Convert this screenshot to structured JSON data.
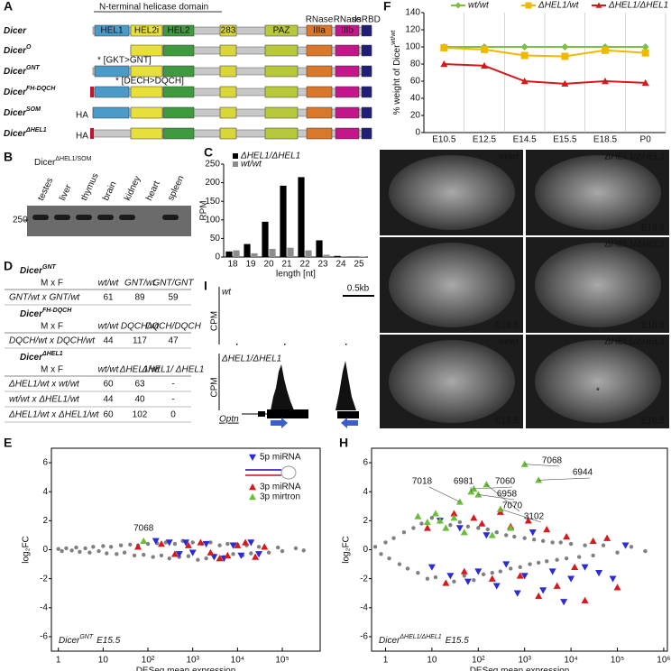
{
  "panel_a": {
    "label": "A",
    "helicase_label": "N-terminal helicase domain",
    "domains": [
      {
        "name": "HEL1",
        "color": "#4b9bc8"
      },
      {
        "name": "HEL2i",
        "color": "#e8e03a"
      },
      {
        "name": "HEL2",
        "color": "#3f9a3f"
      },
      {
        "name": "283",
        "color": "#d9d63a"
      },
      {
        "name": "PAZ",
        "color": "#b7c93b"
      },
      {
        "name": "IIIa",
        "color": "#d9782a"
      },
      {
        "name": "IIIb",
        "color": "#c2168a"
      },
      {
        "name": "dsRBD",
        "color": "#1f1f7a"
      }
    ],
    "headers": [
      "RNase",
      "RNase"
    ],
    "rows": [
      {
        "name": "Dicer"
      },
      {
        "name": "Dicer",
        "sup": "O"
      },
      {
        "name": "Dicer",
        "sup": "GNT",
        "note": "* [GKT>GNT]"
      },
      {
        "name": "Dicer",
        "sup": "FH-DQCH",
        "note": "* [DECH>DQCH]"
      },
      {
        "name": "Dicer",
        "sup": "SOM",
        "tag": "HA"
      },
      {
        "name": "Dicer",
        "sup": "ΔHEL1",
        "tag": "HA"
      }
    ]
  },
  "panel_b": {
    "label": "B",
    "title": "Dicer",
    "title_sup": "ΔHEL1/SOM",
    "lanes": [
      "testes",
      "liver",
      "thymus",
      "brain",
      "kidney",
      "heart",
      "spleen"
    ],
    "marker": "250"
  },
  "panel_d": {
    "label": "D",
    "tables": [
      {
        "title": "Dicer",
        "title_sup": "GNT",
        "header": [
          "M x F",
          "wt/wt",
          "GNT/wt",
          "GNT/GNT"
        ],
        "rows": [
          [
            "GNT/wt x GNT/wt",
            61,
            89,
            59
          ]
        ]
      },
      {
        "title": "Dicer",
        "title_sup": "FH-DQCH",
        "header": [
          "M x F",
          "wt/wt",
          "DQCH/wt",
          "DQCH/DQCH"
        ],
        "rows": [
          [
            "DQCH/wt x DQCH/wt",
            44,
            117,
            47
          ]
        ]
      },
      {
        "title": "Dicer",
        "title_sup": "ΔHEL1",
        "header": [
          "M x F",
          "wt/wt",
          "ΔHEL1/wt",
          "ΔHEL1/ ΔHEL1"
        ],
        "rows": [
          [
            "ΔHEL1/wt x wt/wt",
            60,
            63,
            "-"
          ],
          [
            "wt/wt x ΔHEL1/wt",
            44,
            40,
            "-"
          ],
          [
            "ΔHEL1/wt x ΔHEL1/wt",
            60,
            102,
            0
          ]
        ]
      }
    ]
  },
  "panel_g": {
    "label": "G",
    "asterisk": "*",
    "images": [
      {
        "genotype": "wt/wt"
      },
      {
        "genotype": "ΔHEL1/ΔHEL1",
        "stage": "E18.5"
      },
      {
        "stage": "E18.5"
      },
      {
        "genotype": "ΔHEL1/ΔHEL1",
        "stage": "E18.5"
      },
      {
        "genotype": "wt/wt",
        "stage": "E18.5"
      },
      {
        "genotype": "ΔHEL1/ΔHEL1",
        "stage": "E18.5"
      }
    ]
  },
  "panel_i": {
    "label": "I",
    "tracks": [
      {
        "name": "wt",
        "ylabel": "CPM"
      },
      {
        "name": "ΔHEL1/ΔHEL1",
        "ylabel": "CPM"
      }
    ],
    "scale": "0.5kb",
    "gene": "Optn"
  },
  "chart_data": [
    {
      "type": "bar",
      "panel": "C",
      "categories": [
        "18",
        "19",
        "20",
        "21",
        "22",
        "23",
        "24",
        "25"
      ],
      "series": [
        {
          "name": "ΔHEL1/ΔHEL1",
          "color": "#000000",
          "values": [
            15,
            35,
            95,
            192,
            215,
            45,
            3,
            1
          ]
        },
        {
          "name": "wt/wt",
          "color": "#8c8c8c",
          "values": [
            18,
            10,
            22,
            25,
            18,
            6,
            2,
            1
          ]
        }
      ],
      "xlabel": "length [nt]",
      "ylabel": "RPM",
      "ylim": [
        0,
        250
      ],
      "yticks": [
        0,
        50,
        100,
        150,
        200,
        250
      ],
      "legend": "upper left"
    },
    {
      "type": "line",
      "panel": "F",
      "categories": [
        "E10.5",
        "E12.5",
        "E14.5",
        "E15.5",
        "E18.5",
        "P0"
      ],
      "series": [
        {
          "name": "wt/wt",
          "color": "#7ac143",
          "marker": "diamond",
          "values": [
            100,
            100,
            100,
            100,
            100,
            100
          ]
        },
        {
          "name": "ΔHEL1/wt",
          "color": "#f2b800",
          "marker": "square",
          "values": [
            99,
            97,
            90,
            89,
            96,
            93
          ]
        },
        {
          "name": "ΔHEL1/ΔHEL1",
          "color": "#d7191c",
          "marker": "triangle-up",
          "values": [
            80,
            78,
            60,
            57,
            60,
            58
          ]
        }
      ],
      "ylabel": "% weight of Dicer",
      "ylabel_sup": "wt/wt",
      "ylim": [
        0,
        140
      ],
      "yticks": [
        0,
        20,
        40,
        60,
        80,
        100,
        120,
        140
      ],
      "legend": "top"
    },
    {
      "type": "scatter",
      "panel": "E",
      "xlog": true,
      "xlim": [
        0.7,
        700000
      ],
      "xticks": [
        1,
        10,
        {
          "value": 100,
          "label": "10²"
        },
        {
          "value": 1000,
          "label": "10³"
        },
        {
          "value": 10000,
          "label": "10⁴"
        },
        {
          "value": 100000,
          "label": "10⁵"
        }
      ],
      "ylim": [
        -7,
        7
      ],
      "yticks": [
        6,
        4,
        2,
        0,
        -2,
        -4,
        -6
      ],
      "xlabel": "DESeq mean expression",
      "ylabel": "log₂FC",
      "subtitle": "Dicer",
      "subtitle_sup": "GNT",
      "subtitle_suffix": "E15.5",
      "annotations": [
        "7068"
      ],
      "legend": "upper right",
      "series": [
        {
          "color": "#808080",
          "marker": "circle",
          "x": [
            1,
            1.2,
            1.5,
            2,
            2.5,
            3,
            4,
            5,
            6,
            8,
            10,
            12,
            15,
            20,
            25,
            30,
            40,
            50,
            60,
            80,
            100,
            130,
            160,
            200,
            250,
            300,
            400,
            500,
            600,
            800,
            1000,
            1300,
            1600,
            2000,
            2500,
            3000,
            4000,
            5000,
            6000,
            8000,
            10000,
            13000,
            16000,
            20000,
            30000,
            50000,
            80000,
            100000,
            200000,
            300000
          ],
          "y": [
            0.05,
            -0.1,
            0.1,
            -0.05,
            0.15,
            -0.15,
            0.1,
            -0.2,
            0.2,
            -0.1,
            0.25,
            -0.25,
            0.2,
            -0.3,
            0.3,
            -0.2,
            0.35,
            -0.4,
            0.3,
            -0.35,
            0.4,
            -0.5,
            0.45,
            -0.4,
            0.5,
            -0.6,
            0.4,
            -0.5,
            0.6,
            -0.45,
            0.5,
            -0.7,
            0.4,
            -0.6,
            0.5,
            -0.4,
            0.3,
            -0.5,
            0.4,
            -0.3,
            0.35,
            -0.4,
            0.3,
            -0.25,
            0.2,
            -0.2,
            0.15,
            -0.1,
            0.1,
            -0.05
          ]
        },
        {
          "name": "5p miRNA",
          "color": "#2b2bd9",
          "marker": "triangle-down",
          "x": [
            150,
            300,
            500,
            700,
            1000,
            2000,
            3000,
            5000,
            8000,
            12000,
            20000,
            30000
          ],
          "y": [
            0.6,
            0.5,
            -0.3,
            0.5,
            -0.2,
            0.4,
            -0.5,
            -0.6,
            0.3,
            -0.4,
            0.5,
            -0.3
          ]
        },
        {
          "name": "3p miRNA",
          "color": "#d7191c",
          "marker": "triangle-up",
          "x": [
            60,
            200,
            400,
            800,
            1500,
            2500,
            4000,
            6000,
            10000,
            15000,
            25000,
            40000
          ],
          "y": [
            0.2,
            0.4,
            -0.3,
            0.3,
            0.5,
            -0.2,
            -0.6,
            -0.4,
            0.3,
            0.5,
            -0.5,
            0.2
          ]
        },
        {
          "name": "3p mirtron",
          "color": "#6abf3a",
          "marker": "triangle-up",
          "x": [
            80
          ],
          "y": [
            0.6
          ]
        }
      ]
    },
    {
      "type": "scatter",
      "panel": "H",
      "xlog": true,
      "xlim": [
        0.5,
        1200000
      ],
      "xticks": [
        1,
        10,
        {
          "value": 100,
          "label": "10²"
        },
        {
          "value": 1000,
          "label": "10³"
        },
        {
          "value": 10000,
          "label": "10⁴"
        },
        {
          "value": 100000,
          "label": "10⁵"
        },
        {
          "value": 1000000,
          "label": "10⁶"
        }
      ],
      "ylim": [
        -7,
        7
      ],
      "yticks": [
        6,
        4,
        2,
        0,
        -2,
        -4,
        -6
      ],
      "xlabel": "DESeq mean expression",
      "ylabel": "log₂FC",
      "subtitle": "Dicer",
      "subtitle_sup": "ΔHEL1/ΔHEL1",
      "subtitle_suffix": "E15.5",
      "annotations": [
        "7018",
        "6981",
        "7060",
        "6958",
        "7070",
        "3102",
        "7068",
        "6944"
      ],
      "series": [
        {
          "color": "#808080",
          "marker": "circle",
          "x": [
            0.6,
            0.8,
            1,
            1.2,
            1.5,
            2,
            2.5,
            3,
            4,
            5,
            6,
            8,
            10,
            12,
            15,
            20,
            25,
            30,
            40,
            50,
            60,
            80,
            100,
            130,
            160,
            200,
            250,
            300,
            400,
            500,
            600,
            800,
            1000,
            1300,
            1600,
            2000,
            2500,
            3000,
            4000,
            5000,
            6000,
            8000,
            10000,
            15000,
            20000,
            30000,
            50000,
            100000,
            200000,
            400000
          ],
          "y": [
            0.2,
            -0.3,
            0.5,
            -0.6,
            0.8,
            -1.0,
            1.2,
            -1.3,
            1.5,
            -1.6,
            1.8,
            -2.0,
            2.2,
            -1.9,
            2.1,
            -2.3,
            1.7,
            -2.2,
            1.9,
            -1.8,
            1.6,
            -2.1,
            1.5,
            -1.7,
            1.4,
            -1.6,
            1.2,
            -1.5,
            1.0,
            -1.3,
            0.9,
            -1.2,
            0.8,
            -1.0,
            0.7,
            -0.9,
            0.6,
            -0.8,
            0.5,
            -0.7,
            0.5,
            -0.6,
            0.4,
            -0.5,
            0.3,
            -0.4,
            0.3,
            -0.2,
            0.2,
            -0.1
          ]
        },
        {
          "color": "#2b2bd9",
          "marker": "triangle-down",
          "x": [
            10,
            15,
            25,
            40,
            60,
            100,
            150,
            250,
            400,
            700,
            1000,
            1500,
            2500,
            4000,
            7000,
            10000,
            20000,
            40000,
            80000,
            150000
          ],
          "y": [
            -1.2,
            2.0,
            -1.8,
            1.5,
            -2.2,
            -1.5,
            1.0,
            -2.5,
            -1.0,
            -3.0,
            -1.8,
            1.2,
            -2.8,
            -1.5,
            -3.6,
            -2.0,
            -1.2,
            -1.6,
            -2.0,
            0.3
          ]
        },
        {
          "color": "#d7191c",
          "marker": "triangle-up",
          "x": [
            8,
            20,
            30,
            50,
            80,
            120,
            200,
            300,
            500,
            800,
            1200,
            2000,
            3000,
            5000,
            8000,
            12000,
            20000,
            30000,
            60000,
            100000
          ],
          "y": [
            1.5,
            -2.3,
            2.5,
            -1.5,
            2.2,
            1.8,
            -2.0,
            2.6,
            1.6,
            -1.8,
            2.0,
            -3.2,
            1.4,
            -2.5,
            0.9,
            -1.2,
            -3.5,
            0.6,
            0.8,
            -2.6
          ]
        },
        {
          "color": "#6abf3a",
          "marker": "triangle-up",
          "x": [
            5,
            8,
            12,
            15,
            20,
            30,
            40,
            50,
            70,
            80,
            100,
            150,
            200,
            300,
            500,
            1000,
            2000
          ],
          "y": [
            2.3,
            1.9,
            2.5,
            2.0,
            1.5,
            2.2,
            3.3,
            1.2,
            4.0,
            4.2,
            3.8,
            4.5,
            1.0,
            2.8,
            1.5,
            5.9,
            4.8
          ]
        }
      ]
    }
  ]
}
